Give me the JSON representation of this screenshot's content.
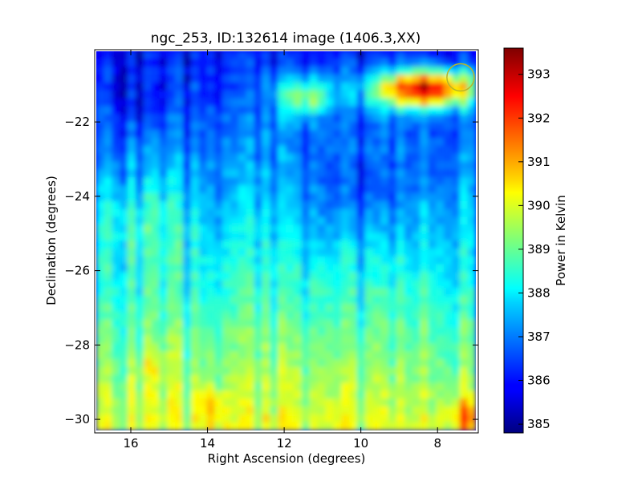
{
  "chart_data": {
    "type": "heatmap",
    "title": "ngc_253, ID:132614 image (1406.3,XX)",
    "xlabel": "Right Ascension (degrees)",
    "ylabel": "Declination (degrees)",
    "xlim": [
      16.9,
      7.0
    ],
    "ylim": [
      -30.3,
      -20.1
    ],
    "x_inverted": true,
    "grid": false,
    "x_ticks": [
      16,
      14,
      12,
      10,
      8
    ],
    "y_ticks": [
      -22,
      -24,
      -26,
      -28,
      -30
    ],
    "x_tick_labels": [
      "16",
      "14",
      "12",
      "10",
      "8"
    ],
    "y_tick_labels": [
      "−22",
      "−24",
      "−26",
      "−28",
      "−30"
    ],
    "colormap": "jet",
    "colorbar": {
      "label": "Power in Kelvin",
      "range": [
        384.8,
        393.6
      ],
      "ticks": [
        385,
        386,
        387,
        388,
        389,
        390,
        391,
        392,
        393
      ],
      "tick_labels": [
        "385",
        "386",
        "387",
        "388",
        "389",
        "390",
        "391",
        "392",
        "393"
      ]
    },
    "hotspots": [
      {
        "ra": 8.4,
        "dec": -21.3,
        "value": 393.4
      },
      {
        "ra": 9.2,
        "dec": -21.2,
        "value": 392.2
      },
      {
        "ra": 7.3,
        "dec": -29.9,
        "value": 392.0
      },
      {
        "ra": 13.9,
        "dec": -29.7,
        "value": 391.3
      },
      {
        "ra": 15.4,
        "dec": -28.5,
        "value": 390.8
      }
    ],
    "marker_circle": {
      "ra": 7.4,
      "dec": -20.8
    }
  }
}
